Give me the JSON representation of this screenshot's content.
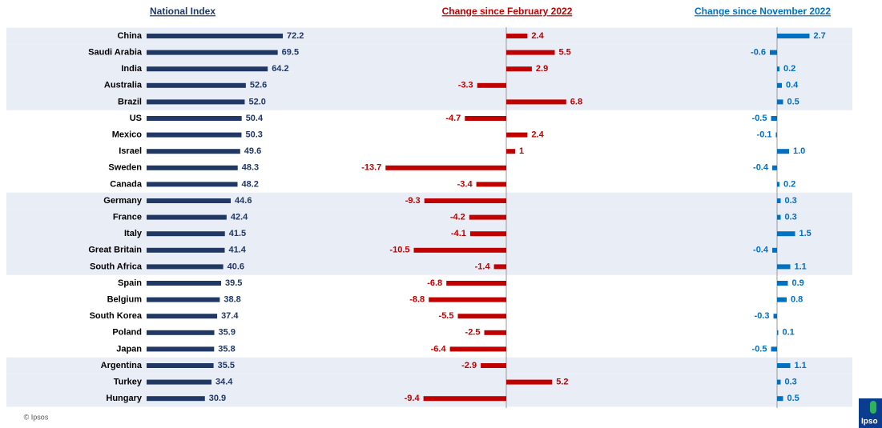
{
  "chart_data": [
    {
      "type": "hbar",
      "title": "National Index",
      "color": "#1f3864",
      "categories": [
        "China",
        "Saudi Arabia",
        "India",
        "Australia",
        "Brazil",
        "US",
        "Mexico",
        "Israel",
        "Sweden",
        "Canada",
        "Germany",
        "France",
        "Italy",
        "Great Britain",
        "South Africa",
        "Spain",
        "Belgium",
        "South Korea",
        "Poland",
        "Japan",
        "Argentina",
        "Turkey",
        "Hungary"
      ],
      "values": [
        72.2,
        69.5,
        64.2,
        52.6,
        52,
        50.4,
        50.3,
        49.6,
        48.3,
        48.2,
        44.6,
        42.4,
        41.5,
        41.4,
        40.6,
        39.5,
        38.8,
        37.4,
        35.9,
        35.8,
        35.5,
        34.4,
        30.9
      ],
      "value_labels": [
        "72.2",
        "69.5",
        "64.2",
        "52.6",
        "52.0",
        "50.4",
        "50.3",
        "49.6",
        "48.3",
        "48.2",
        "44.6",
        "42.4",
        "41.5",
        "41.4",
        "40.6",
        "39.5",
        "38.8",
        "37.4",
        "35.9",
        "35.8",
        "35.5",
        "34.4",
        "30.9"
      ]
    },
    {
      "type": "hbar",
      "title": "Change since February 2022",
      "color": "#c00000",
      "values": [
        2.4,
        5.5,
        2.9,
        -3.3,
        6.8,
        -4.7,
        2.4,
        1,
        -13.7,
        -3.4,
        -9.3,
        -4.2,
        -4.1,
        -10.5,
        -1.4,
        -6.8,
        -8.8,
        -5.5,
        -2.5,
        -6.4,
        -2.9,
        5.2,
        -9.4
      ]
    },
    {
      "type": "hbar",
      "title": "Change since November 2022",
      "color": "#0070c0",
      "values": [
        2.7,
        -0.6,
        0.2,
        0.4,
        0.5,
        -0.5,
        -0.1,
        1,
        -0.4,
        0.2,
        0.3,
        0.3,
        1.5,
        -0.4,
        1.1,
        0.9,
        0.8,
        -0.3,
        0.1,
        -0.5,
        1.1,
        0.3,
        0.5
      ],
      "value_labels": [
        "2.7",
        "-0.6",
        "0.2",
        "0.4",
        "0.5",
        "-0.5",
        "-0.1",
        "1.0",
        "-0.4",
        "0.2",
        "0.3",
        "0.3",
        "1.5",
        "-0.4",
        "1.1",
        "0.9",
        "0.8",
        "-0.3",
        "0.1",
        "-0.5",
        "1.1",
        "0.3",
        "0.5"
      ]
    }
  ],
  "source": "© Ipsos",
  "logo": "Ipso"
}
